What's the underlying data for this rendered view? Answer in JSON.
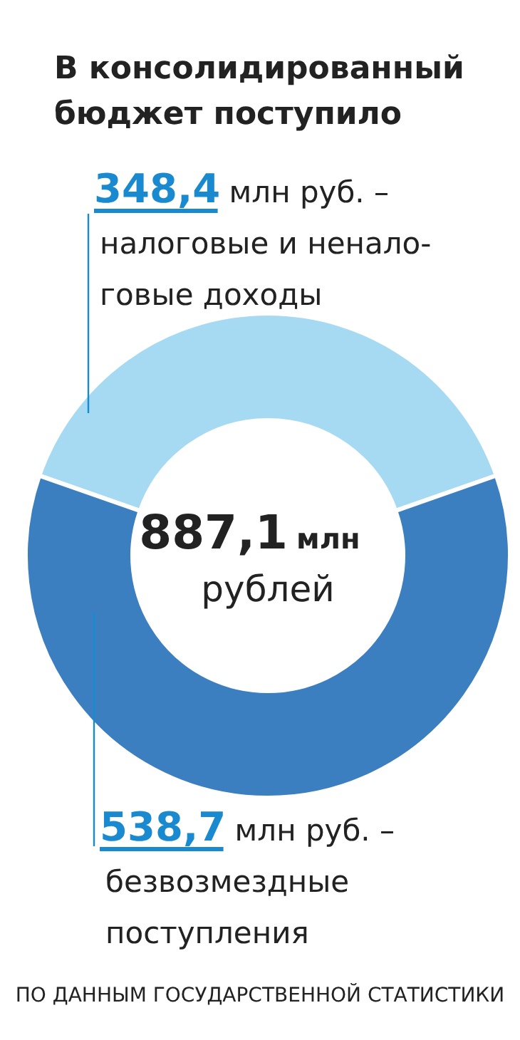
{
  "chart_data": {
    "type": "donut",
    "title": "В консолидированный\nбюджет поступило",
    "categories": [
      "налоговые и ненало-\nговые доходы",
      "безвозмездные\nпоступления"
    ],
    "values": [
      348.4,
      538.7
    ],
    "colors": [
      "#a6d9f2",
      "#3b7fc0"
    ],
    "value_labels": [
      "348,4 млн руб. –",
      "538,7 млн руб. –"
    ],
    "annotations": [
      "887,1 млн рублей",
      "ПО ДАННЫМ ГОСУДАРСТВЕННОЙ СТАТИСТИКИ"
    ]
  }
}
